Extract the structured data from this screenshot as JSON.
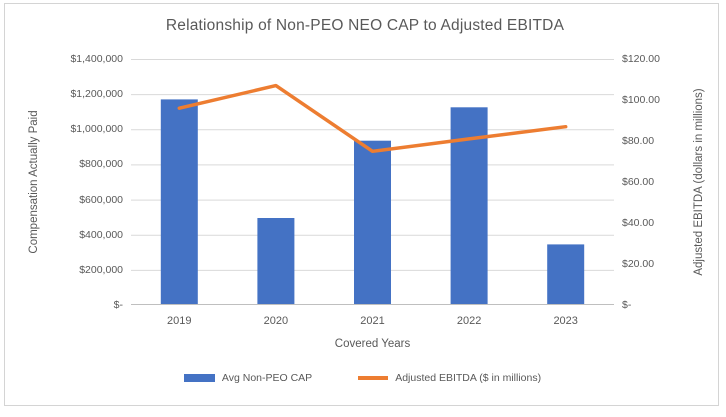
{
  "frame": {
    "border_color": "#d4d4d4",
    "background": "#ffffff"
  },
  "chart_data": {
    "type": "combo-bar-line",
    "title": "Relationship of Non-PEO NEO CAP to Adjusted EBITDA",
    "categories": [
      "2019",
      "2020",
      "2021",
      "2022",
      "2023"
    ],
    "series": [
      {
        "name": "Avg Non-PEO CAP",
        "type": "bar",
        "axis": "left",
        "color": "#4472C4",
        "values": [
          1170000,
          495000,
          935000,
          1125000,
          345000
        ]
      },
      {
        "name": "Adjusted EBITDA ($ in millions)",
        "type": "line",
        "axis": "right",
        "color": "#ED7D31",
        "values": [
          96,
          107,
          75,
          81,
          87
        ]
      }
    ],
    "xlabel": "Covered Years",
    "left_axis": {
      "label": "Compensation Actually Paid",
      "min": 0,
      "max": 1400000,
      "step": 200000,
      "ticks_top_down": [
        "$1,400,000",
        "$1,200,000",
        "$1,000,000",
        "$800,000",
        "$600,000",
        "$400,000",
        "$200,000",
        "$-"
      ]
    },
    "right_axis": {
      "label": "Adjusted EBITDA (dollars in millions)",
      "min": 0,
      "max": 120,
      "step": 20,
      "ticks_top_down": [
        "$120.00",
        "$100.00",
        "$80.00",
        "$60.00",
        "$40.00",
        "$20.00",
        "$-"
      ]
    },
    "grid": true,
    "legend_position": "bottom",
    "colors": {
      "gridline": "#d9d9d9",
      "axis_line": "#bfbfbf",
      "text": "#595959"
    }
  }
}
